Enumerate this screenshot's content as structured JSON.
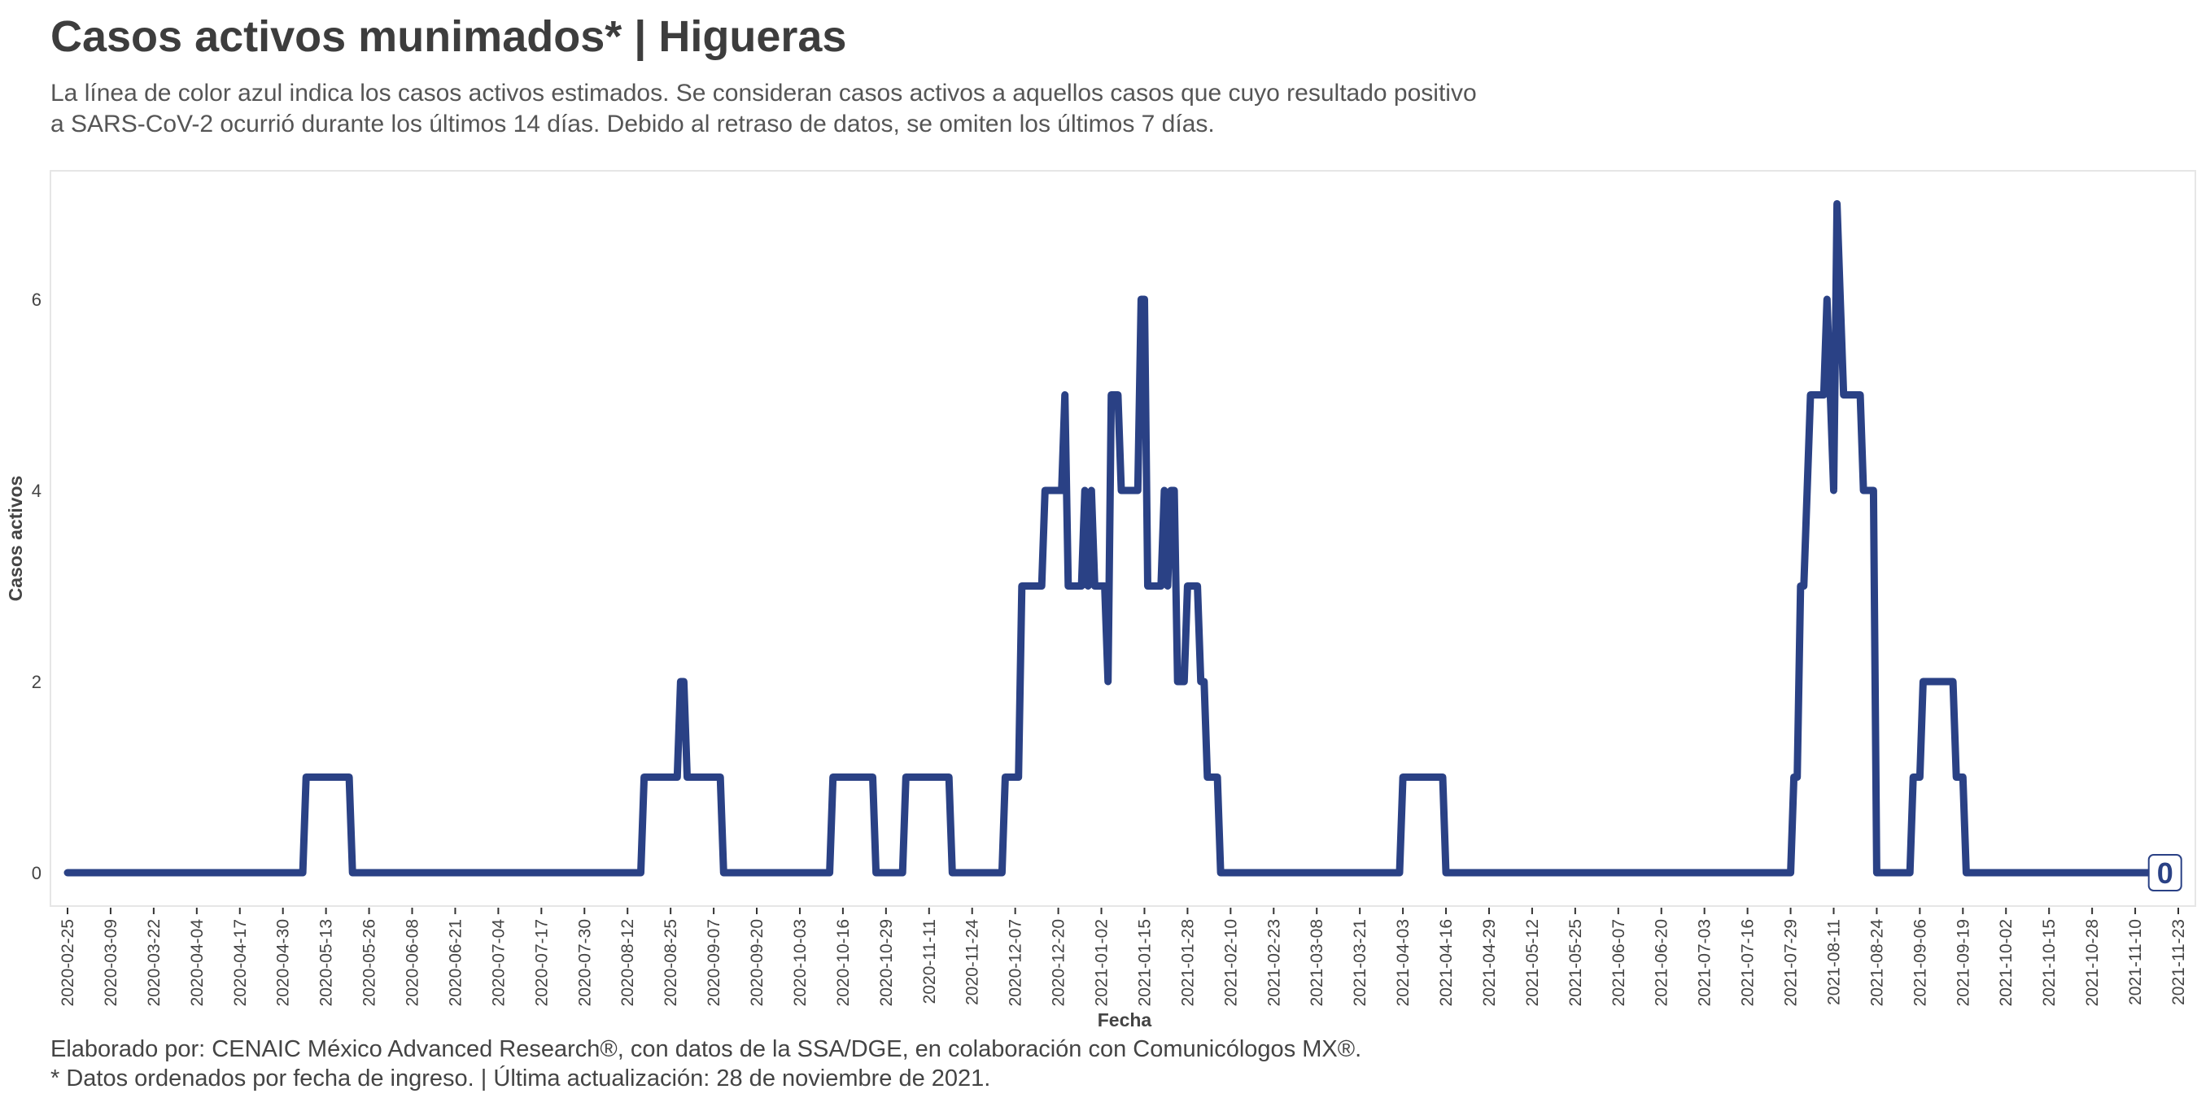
{
  "header": {
    "title": "Casos activos munimados* | Higueras",
    "subtitle_line1": "La línea de color azul indica los casos activos estimados. Se consideran casos activos a aquellos casos que cuyo resultado positivo",
    "subtitle_line2": "a SARS-CoV-2 ocurrió durante los últimos 14 días. Debido al retraso de datos, se omiten los últimos 7 días."
  },
  "footer": {
    "caption_line1": "Elaborado por: CENAIC México Advanced Research®, con datos de la SSA/DGE, en colaboración con Comunicólogos MX®.",
    "caption_line2": "* Datos ordenados por fecha de ingreso. | Última actualización: 28 de noviembre de 2021."
  },
  "chart_data": {
    "type": "line",
    "xlabel": "Fecha",
    "ylabel": "Casos activos",
    "xlim": [
      "2020-02-25",
      "2021-11-23"
    ],
    "ylim": [
      0,
      7
    ],
    "y_ticks": [
      0,
      2,
      4,
      6
    ],
    "x_ticks": [
      "2020-02-25",
      "2020-03-09",
      "2020-03-22",
      "2020-04-04",
      "2020-04-17",
      "2020-04-30",
      "2020-05-13",
      "2020-05-26",
      "2020-06-08",
      "2020-06-21",
      "2020-07-04",
      "2020-07-17",
      "2020-07-30",
      "2020-08-12",
      "2020-08-25",
      "2020-09-07",
      "2020-09-20",
      "2020-10-03",
      "2020-10-16",
      "2020-10-29",
      "2020-11-11",
      "2020-11-24",
      "2020-12-07",
      "2020-12-20",
      "2021-01-02",
      "2021-01-15",
      "2021-01-28",
      "2021-02-10",
      "2021-02-23",
      "2021-03-08",
      "2021-03-21",
      "2021-04-03",
      "2021-04-16",
      "2021-04-29",
      "2021-05-12",
      "2021-05-25",
      "2021-06-07",
      "2021-06-20",
      "2021-07-03",
      "2021-07-16",
      "2021-07-29",
      "2021-08-11",
      "2021-08-24",
      "2021-09-06",
      "2021-09-19",
      "2021-10-02",
      "2021-10-15",
      "2021-10-28",
      "2021-11-10",
      "2021-11-23"
    ],
    "grid": false,
    "line_color": "#2a4185",
    "series": [
      {
        "points": [
          [
            "2020-02-25",
            0
          ],
          [
            "2020-05-06",
            0
          ],
          [
            "2020-05-07",
            1
          ],
          [
            "2020-05-20",
            1
          ],
          [
            "2020-05-21",
            0
          ],
          [
            "2020-08-16",
            0
          ],
          [
            "2020-08-17",
            1
          ],
          [
            "2020-08-27",
            1
          ],
          [
            "2020-08-28",
            2
          ],
          [
            "2020-08-29",
            2
          ],
          [
            "2020-08-30",
            1
          ],
          [
            "2020-09-09",
            1
          ],
          [
            "2020-09-10",
            0
          ],
          [
            "2020-10-12",
            0
          ],
          [
            "2020-10-13",
            1
          ],
          [
            "2020-10-25",
            1
          ],
          [
            "2020-10-26",
            0
          ],
          [
            "2020-11-03",
            0
          ],
          [
            "2020-11-04",
            1
          ],
          [
            "2020-11-17",
            1
          ],
          [
            "2020-11-18",
            0
          ],
          [
            "2020-12-03",
            0
          ],
          [
            "2020-12-04",
            1
          ],
          [
            "2020-12-08",
            1
          ],
          [
            "2020-12-09",
            3
          ],
          [
            "2020-12-15",
            3
          ],
          [
            "2020-12-16",
            4
          ],
          [
            "2020-12-21",
            4
          ],
          [
            "2020-12-22",
            5
          ],
          [
            "2020-12-23",
            3
          ],
          [
            "2020-12-27",
            3
          ],
          [
            "2020-12-28",
            4
          ],
          [
            "2020-12-29",
            3
          ],
          [
            "2020-12-30",
            4
          ],
          [
            "2020-12-31",
            3
          ],
          [
            "2021-01-03",
            3
          ],
          [
            "2021-01-04",
            2
          ],
          [
            "2021-01-05",
            5
          ],
          [
            "2021-01-07",
            5
          ],
          [
            "2021-01-08",
            4
          ],
          [
            "2021-01-13",
            4
          ],
          [
            "2021-01-14",
            6
          ],
          [
            "2021-01-15",
            6
          ],
          [
            "2021-01-16",
            3
          ],
          [
            "2021-01-20",
            3
          ],
          [
            "2021-01-21",
            4
          ],
          [
            "2021-01-22",
            3
          ],
          [
            "2021-01-23",
            4
          ],
          [
            "2021-01-24",
            4
          ],
          [
            "2021-01-25",
            2
          ],
          [
            "2021-01-27",
            2
          ],
          [
            "2021-01-28",
            3
          ],
          [
            "2021-01-31",
            3
          ],
          [
            "2021-02-01",
            2
          ],
          [
            "2021-02-02",
            2
          ],
          [
            "2021-02-03",
            1
          ],
          [
            "2021-02-06",
            1
          ],
          [
            "2021-02-07",
            0
          ],
          [
            "2021-04-02",
            0
          ],
          [
            "2021-04-03",
            1
          ],
          [
            "2021-04-15",
            1
          ],
          [
            "2021-04-16",
            0
          ],
          [
            "2021-07-29",
            0
          ],
          [
            "2021-07-30",
            1
          ],
          [
            "2021-07-31",
            1
          ],
          [
            "2021-08-01",
            3
          ],
          [
            "2021-08-02",
            3
          ],
          [
            "2021-08-03",
            4
          ],
          [
            "2021-08-04",
            5
          ],
          [
            "2021-08-08",
            5
          ],
          [
            "2021-08-09",
            6
          ],
          [
            "2021-08-10",
            5
          ],
          [
            "2021-08-11",
            4
          ],
          [
            "2021-08-12",
            7
          ],
          [
            "2021-08-13",
            6
          ],
          [
            "2021-08-14",
            5
          ],
          [
            "2021-08-19",
            5
          ],
          [
            "2021-08-20",
            4
          ],
          [
            "2021-08-23",
            4
          ],
          [
            "2021-08-24",
            0
          ],
          [
            "2021-09-03",
            0
          ],
          [
            "2021-09-04",
            1
          ],
          [
            "2021-09-06",
            1
          ],
          [
            "2021-09-07",
            2
          ],
          [
            "2021-09-16",
            2
          ],
          [
            "2021-09-17",
            1
          ],
          [
            "2021-09-19",
            1
          ],
          [
            "2021-09-20",
            0
          ],
          [
            "2021-11-23",
            0
          ]
        ]
      }
    ],
    "annotations": [
      {
        "x": "2021-11-19",
        "y": 0,
        "text": "0"
      }
    ]
  }
}
